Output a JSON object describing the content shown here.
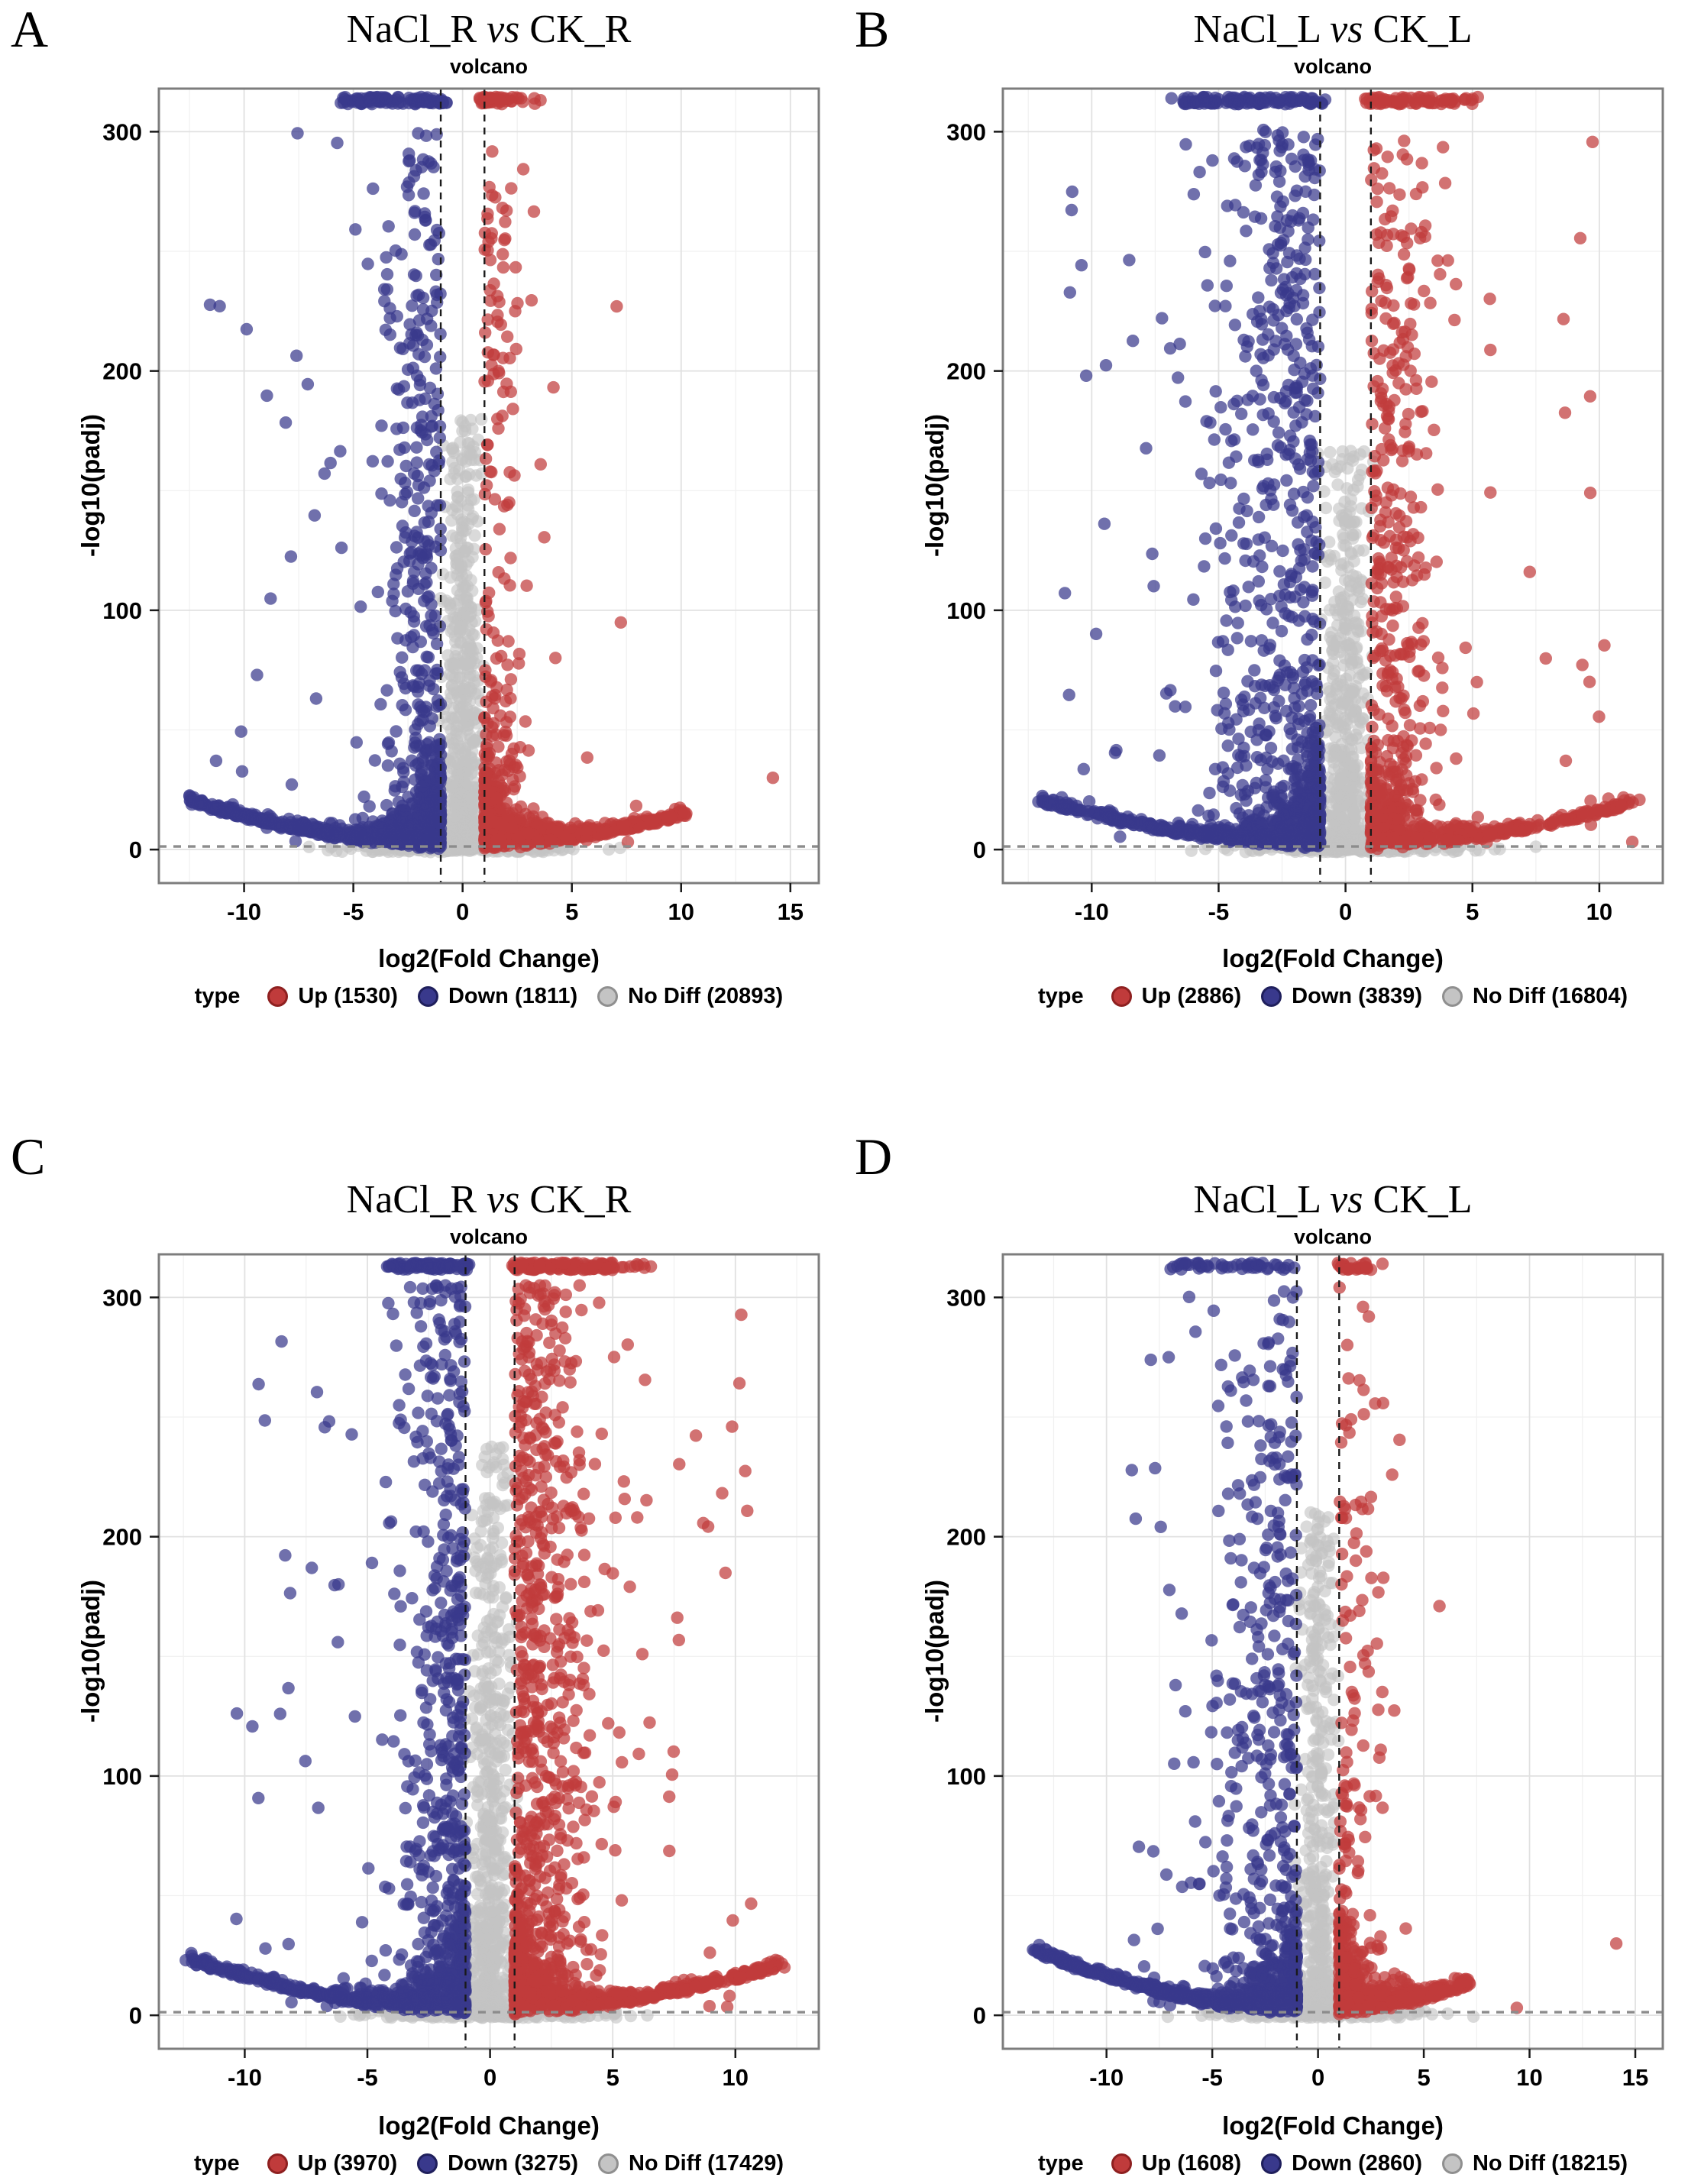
{
  "figure": {
    "background": "#ffffff",
    "n_panels": 4
  },
  "colors": {
    "up": "#c03b3b",
    "up_stroke": "#8e2020",
    "down": "#39398c",
    "down_stroke": "#1f1f5c",
    "nodiff": "#c4c4c4",
    "nodiff_stroke": "#8f8f8f",
    "grid_major": "#e1e1e1",
    "grid_minor": "#f1f1f1",
    "panel_border": "#7d7d7d",
    "tick": "#1a1a1a",
    "vline": "#1a1a1a",
    "hline": "#8c8c8c"
  },
  "chart_data": [
    {
      "type": "scatter",
      "letter": "A",
      "title_left": "NaCl_R",
      "title_vs": "vs",
      "title_right": "CK_R",
      "subtitle": "volcano",
      "xlabel": "log2(Fold Change)",
      "ylabel": "-log10(padj)",
      "x_ticks": [
        -10,
        -5,
        0,
        5,
        10,
        15
      ],
      "y_ticks": [
        0,
        100,
        200,
        300
      ],
      "xlim": [
        -13.9,
        16.3
      ],
      "ylim": [
        -14,
        318
      ],
      "fc_threshold": 1,
      "padj_line": 1.3,
      "cap_y": 313,
      "legend_title": "type",
      "legend": [
        {
          "label": "Up (1530)",
          "color": "up"
        },
        {
          "label": "Down (1811)",
          "color": "down"
        },
        {
          "label": "No Diff (20893)",
          "color": "nodiff"
        }
      ],
      "counts": {
        "up": 1530,
        "down": 1811,
        "no_diff": 20893
      },
      "seed": 101,
      "cloud": {
        "wing_down": {
          "n": 620,
          "tip": -12.5,
          "tipY": 19
        },
        "wing_up": {
          "n": 520,
          "tip": 10.3,
          "tipY": 14
        },
        "col_down": {
          "n": 400,
          "sigma": 1.25,
          "far": -11.8,
          "ymax": 300,
          "ypow": 1.55
        },
        "col_up": {
          "n": 230,
          "sigma": 1.05,
          "far": 8.0,
          "ymax": 293,
          "ypow": 2.3
        },
        "gray_col": {
          "n": 620,
          "top": 182,
          "ypow": 2.4
        },
        "gray_base": {
          "n": 210,
          "spread": 2.6
        },
        "cap_down": {
          "n": 95,
          "from": -5.6,
          "to": -0.72,
          "sparse_n": 4,
          "sparse_to": -6.3
        },
        "cap_up": {
          "n": 42,
          "from": 0.75,
          "to": 2.55,
          "sparse_n": 5,
          "sparse_to": 3.6
        },
        "outliers_up": [
          [
            14.2,
            30
          ],
          [
            10.15,
            15.5
          ]
        ],
        "outliers_down": [
          [
            -12.3,
            21
          ],
          [
            -12.5,
            22.3
          ],
          [
            -11.6,
            17.5
          ]
        ]
      }
    },
    {
      "type": "scatter",
      "letter": "B",
      "title_left": "NaCl_L",
      "title_vs": "vs",
      "title_right": "CK_L",
      "subtitle": "volcano",
      "xlabel": "log2(Fold Change)",
      "ylabel": "-log10(padj)",
      "x_ticks": [
        -10,
        -5,
        0,
        5,
        10
      ],
      "y_ticks": [
        0,
        100,
        200,
        300
      ],
      "xlim": [
        -13.5,
        12.5
      ],
      "ylim": [
        -14,
        318
      ],
      "fc_threshold": 1,
      "padj_line": 1.3,
      "cap_y": 313,
      "legend_title": "type",
      "legend": [
        {
          "label": "Up (2886)",
          "color": "up"
        },
        {
          "label": "Down (3839)",
          "color": "down"
        },
        {
          "label": "No Diff (16804)",
          "color": "nodiff"
        }
      ],
      "counts": {
        "up": 2886,
        "down": 3839,
        "no_diff": 16804
      },
      "seed": 202,
      "cloud": {
        "wing_down": {
          "n": 600,
          "tip": -12.0,
          "tipY": 19
        },
        "wing_up": {
          "n": 430,
          "tip": 11.6,
          "tipY": 19
        },
        "col_down": {
          "n": 620,
          "sigma": 2.0,
          "far": -11.3,
          "ymax": 298,
          "ypow": 1.45
        },
        "col_up": {
          "n": 420,
          "sigma": 1.35,
          "far": 10.5,
          "ymax": 298,
          "ypow": 1.8
        },
        "gray_col": {
          "n": 560,
          "top": 168,
          "ypow": 2.4
        },
        "gray_base": {
          "n": 200,
          "spread": 2.6
        },
        "cap_down": {
          "n": 120,
          "from": -6.4,
          "to": -0.75,
          "sparse_n": 3,
          "sparse_to": -7.2
        },
        "cap_up": {
          "n": 70,
          "from": 0.75,
          "to": 4.3,
          "sparse_n": 8,
          "sparse_to": 5.6
        },
        "outliers_up": [
          [
            11.3,
            3.2
          ]
        ],
        "outliers_down": [
          [
            -12.1,
            20
          ]
        ]
      }
    },
    {
      "type": "scatter",
      "letter": "C",
      "title_left": "NaCl_R",
      "title_vs": "vs",
      "title_right": "CK_R",
      "subtitle": "volcano",
      "xlabel": "log2(Fold Change)",
      "ylabel": "-log10(padj)",
      "x_ticks": [
        -10,
        -5,
        0,
        5,
        10
      ],
      "y_ticks": [
        0,
        100,
        200,
        300
      ],
      "xlim": [
        -13.5,
        13.4
      ],
      "ylim": [
        -14,
        318
      ],
      "fc_threshold": 1,
      "padj_line": 1.3,
      "cap_y": 313,
      "legend_title": "type",
      "legend": [
        {
          "label": "Up (3970)",
          "color": "up"
        },
        {
          "label": "Down (3275)",
          "color": "down"
        },
        {
          "label": "No Diff (17429)",
          "color": "nodiff"
        }
      ],
      "counts": {
        "up": 3970,
        "down": 3275,
        "no_diff": 17429
      },
      "seed": 303,
      "cloud": {
        "wing_down": {
          "n": 560,
          "tip": -12.3,
          "tipY": 22
        },
        "wing_up": {
          "n": 620,
          "tip": 11.9,
          "tipY": 20
        },
        "col_down": {
          "n": 520,
          "sigma": 1.35,
          "far": -10.5,
          "ymax": 303,
          "ypow": 1.35
        },
        "col_up": {
          "n": 680,
          "sigma": 1.5,
          "far": 10.8,
          "ymax": 305,
          "ypow": 1.2
        },
        "gray_col": {
          "n": 650,
          "top": 238,
          "ypow": 2.1
        },
        "gray_base": {
          "n": 230,
          "spread": 2.7
        },
        "cap_down": {
          "n": 80,
          "from": -4.3,
          "to": -0.8,
          "sparse_n": 3,
          "sparse_to": -5.0
        },
        "cap_up": {
          "n": 130,
          "from": 0.9,
          "to": 5.1,
          "sparse_n": 9,
          "sparse_to": 6.6
        },
        "outliers_up": [
          [
            12.0,
            20
          ]
        ],
        "outliers_down": [
          [
            -12.4,
            23
          ]
        ]
      }
    },
    {
      "type": "scatter",
      "letter": "D",
      "title_left": "NaCl_L",
      "title_vs": "vs",
      "title_right": "CK_L",
      "subtitle": "volcano",
      "xlabel": "log2(Fold Change)",
      "ylabel": "-log10(padj)",
      "x_ticks": [
        -10,
        -5,
        0,
        5,
        10,
        15
      ],
      "y_ticks": [
        0,
        100,
        200,
        300
      ],
      "xlim": [
        -14.9,
        16.3
      ],
      "ylim": [
        -14,
        318
      ],
      "fc_threshold": 1,
      "padj_line": 1.3,
      "cap_y": 313,
      "legend_title": "type",
      "legend": [
        {
          "label": "Up (1608)",
          "color": "up"
        },
        {
          "label": "Down (2860)",
          "color": "down"
        },
        {
          "label": "No Diff (18215)",
          "color": "nodiff"
        }
      ],
      "counts": {
        "up": 1608,
        "down": 2860,
        "no_diff": 18215
      },
      "seed": 404,
      "cloud": {
        "wing_down": {
          "n": 600,
          "tip": -13.5,
          "tipY": 26
        },
        "wing_up": {
          "n": 400,
          "tip": 7.2,
          "tipY": 12
        },
        "col_down": {
          "n": 430,
          "sigma": 2.3,
          "far": -9.8,
          "ymax": 300,
          "ypow": 1.7
        },
        "col_up": {
          "n": 210,
          "sigma": 0.95,
          "far": 6.0,
          "ymax": 303,
          "ypow": 2.8
        },
        "gray_col": {
          "n": 520,
          "top": 210,
          "ypow": 2.6
        },
        "gray_base": {
          "n": 200,
          "spread": 2.4
        },
        "cap_down": {
          "n": 46,
          "from": -7.0,
          "to": -0.8,
          "sparse_n": 3,
          "sparse_to": -7.6
        },
        "cap_up": {
          "n": 26,
          "from": 0.85,
          "to": 2.3,
          "sparse_n": 3,
          "sparse_to": 3.2
        },
        "outliers_up": [
          [
            14.1,
            30
          ],
          [
            9.4,
            3.1
          ]
        ],
        "outliers_down": [
          [
            -13.4,
            27
          ]
        ]
      }
    }
  ]
}
